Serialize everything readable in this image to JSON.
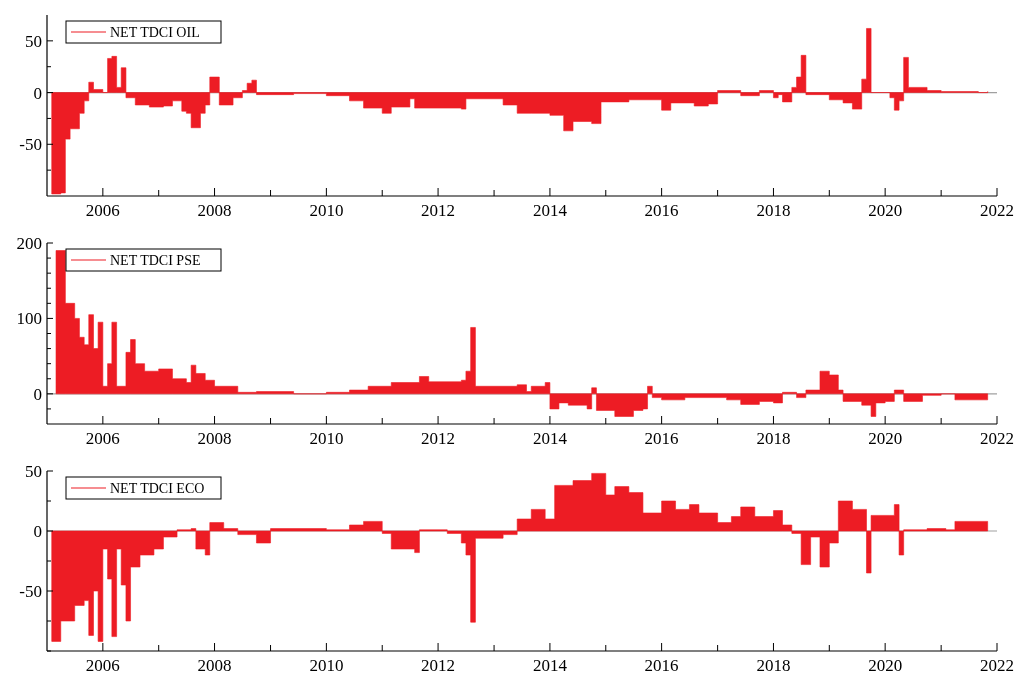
{
  "chart_data": [
    {
      "type": "area",
      "legend": "top left",
      "xlim": [
        "2005",
        "2022"
      ],
      "ylim": [
        -100,
        75
      ],
      "xticks": [
        "2006",
        {
          "value": "2007",
          "label": null
        },
        "2008",
        {
          "value": "2009",
          "label": null
        },
        "2010",
        {
          "value": "2011",
          "label": null
        },
        "2012",
        {
          "value": "2013",
          "label": null
        },
        "2014",
        {
          "value": "2015",
          "label": null
        },
        "2016",
        {
          "value": "2017",
          "label": null
        },
        "2018",
        {
          "value": "2019",
          "label": null
        },
        "2020",
        {
          "value": "2021",
          "label": null
        },
        "2022"
      ],
      "yticks": [
        {
          "value": -75,
          "label": null
        },
        -50,
        {
          "value": -25,
          "label": null
        },
        0,
        {
          "value": 25,
          "label": null
        },
        50
      ],
      "ref_lines": [
        {
          "axis": "y",
          "value": 0,
          "color": "#a0a0a0"
        }
      ],
      "x": [
        "2005-02",
        "2005-04",
        "2005-05",
        "2005-06",
        "2005-08",
        "2005-09",
        "2005-10",
        "2005-11",
        "2006-01",
        "2006-02",
        "2006-03",
        "2006-04",
        "2006-05",
        "2006-06",
        "2006-08",
        "2006-11",
        "2007-02",
        "2007-04",
        "2007-06",
        "2007-07",
        "2007-08",
        "2007-10",
        "2007-11",
        "2007-12",
        "2008-02",
        "2008-05",
        "2008-07",
        "2008-08",
        "2008-09",
        "2008-10",
        "2009-06",
        "2010-01",
        "2010-06",
        "2010-09",
        "2011-01",
        "2011-03",
        "2011-07",
        "2011-08",
        "2012-06",
        "2012-07",
        "2013-03",
        "2013-06",
        "2013-09",
        "2014-01",
        "2014-04",
        "2014-06",
        "2014-10",
        "2014-12",
        "2015-06",
        "2016-01",
        "2016-03",
        "2016-08",
        "2016-11",
        "2017-01",
        "2017-06",
        "2017-10",
        "2018-01",
        "2018-02",
        "2018-03",
        "2018-05",
        "2018-06",
        "2018-07",
        "2018-08",
        "2019-01",
        "2019-04",
        "2019-06",
        "2019-08",
        "2019-09",
        "2019-10",
        "2020-02",
        "2020-03",
        "2020-04",
        "2020-05",
        "2020-06",
        "2020-10",
        "2021-01",
        "2021-09",
        "2021-11"
      ],
      "series": [
        {
          "name": "NET TDCI OIL",
          "color": "#ed1c24",
          "values": [
            -98,
            -97,
            -45,
            -35,
            -20,
            -8,
            10,
            3,
            0,
            33,
            35,
            5,
            24,
            -5,
            -12,
            -14,
            -13,
            -8,
            -18,
            -20,
            -34,
            -20,
            -12,
            15,
            -12,
            -5,
            2,
            9,
            12,
            -2,
            -1,
            -3,
            -8,
            -15,
            -20,
            -14,
            -6,
            -15,
            -16,
            -6,
            -12,
            -20,
            -20,
            -22,
            -37,
            -28,
            -30,
            -9,
            -7,
            -17,
            -10,
            -13,
            -11,
            2,
            -3,
            2,
            -5,
            -2,
            -9,
            5,
            15,
            36,
            -2,
            -7,
            -10,
            -16,
            13,
            62,
            0,
            -5,
            -17,
            -8,
            34,
            5,
            2,
            1,
            0,
            1
          ]
        }
      ]
    },
    {
      "type": "area",
      "legend": "top left",
      "xlim": [
        "2005",
        "2022"
      ],
      "ylim": [
        -40,
        200
      ],
      "xticks": [
        "2006",
        {
          "value": "2007",
          "label": null
        },
        "2008",
        {
          "value": "2009",
          "label": null
        },
        "2010",
        {
          "value": "2011",
          "label": null
        },
        "2012",
        {
          "value": "2013",
          "label": null
        },
        "2014",
        {
          "value": "2015",
          "label": null
        },
        "2016",
        {
          "value": "2017",
          "label": null
        },
        "2018",
        {
          "value": "2019",
          "label": null
        },
        "2020",
        {
          "value": "2021",
          "label": null
        },
        "2022"
      ],
      "yticks": [
        {
          "value": -20,
          "label": null
        },
        0,
        {
          "value": 20,
          "label": null
        },
        {
          "value": 40,
          "label": null
        },
        {
          "value": 60,
          "label": null
        },
        {
          "value": 80,
          "label": null
        },
        100,
        {
          "value": 120,
          "label": null
        },
        {
          "value": 140,
          "label": null
        },
        {
          "value": 160,
          "label": null
        },
        {
          "value": 180,
          "label": null
        },
        200
      ],
      "ref_lines": [
        {
          "axis": "y",
          "value": 0,
          "color": "#a0a0a0"
        }
      ],
      "x": [
        "2005-03",
        "2005-05",
        "2005-07",
        "2005-08",
        "2005-09",
        "2005-10",
        "2005-11",
        "2005-12",
        "2006-01",
        "2006-02",
        "2006-03",
        "2006-04",
        "2006-06",
        "2006-07",
        "2006-08",
        "2006-10",
        "2007-01",
        "2007-04",
        "2007-07",
        "2007-08",
        "2007-09",
        "2007-11",
        "2008-01",
        "2008-06",
        "2008-10",
        "2009-06",
        "2010-01",
        "2010-06",
        "2010-10",
        "2011-03",
        "2011-09",
        "2011-11",
        "2012-06",
        "2012-07",
        "2012-08",
        "2012-09",
        "2013-06",
        "2013-08",
        "2013-09",
        "2013-12",
        "2014-01",
        "2014-03",
        "2014-05",
        "2014-09",
        "2014-10",
        "2014-11",
        "2015-03",
        "2015-07",
        "2015-09",
        "2015-10",
        "2015-11",
        "2016-01",
        "2016-06",
        "2016-09",
        "2017-03",
        "2017-06",
        "2017-10",
        "2018-01",
        "2018-03",
        "2018-06",
        "2018-08",
        "2018-11",
        "2019-01",
        "2019-03",
        "2019-04",
        "2019-08",
        "2019-10",
        "2019-11",
        "2020-01",
        "2020-03",
        "2020-05",
        "2020-09",
        "2021-01",
        "2021-04",
        "2021-11"
      ],
      "series": [
        {
          "name": "NET TDCI PSE",
          "color": "#ed1c24",
          "values": [
            190,
            120,
            100,
            75,
            65,
            105,
            60,
            95,
            10,
            40,
            95,
            10,
            55,
            72,
            40,
            30,
            33,
            20,
            15,
            38,
            27,
            18,
            10,
            2,
            3,
            0,
            2,
            5,
            10,
            15,
            23,
            16,
            18,
            30,
            88,
            10,
            12,
            3,
            10,
            15,
            -20,
            -12,
            -15,
            -20,
            8,
            -22,
            -30,
            -22,
            -20,
            10,
            -5,
            -8,
            -5,
            -5,
            -8,
            -14,
            -10,
            -12,
            2,
            -5,
            5,
            30,
            25,
            5,
            -10,
            -15,
            -30,
            -12,
            -10,
            5,
            -10,
            -2,
            0,
            -8,
            -8
          ]
        }
      ]
    },
    {
      "type": "area",
      "legend": "top left",
      "xlim": [
        "2005",
        "2022"
      ],
      "ylim": [
        -100,
        50
      ],
      "xticks": [
        "2006",
        {
          "value": "2007",
          "label": null
        },
        "2008",
        {
          "value": "2009",
          "label": null
        },
        "2010",
        {
          "value": "2011",
          "label": null
        },
        "2012",
        {
          "value": "2013",
          "label": null
        },
        "2014",
        {
          "value": "2015",
          "label": null
        },
        "2016",
        {
          "value": "2017",
          "label": null
        },
        "2018",
        {
          "value": "2019",
          "label": null
        },
        "2020",
        {
          "value": "2021",
          "label": null
        },
        "2022"
      ],
      "yticks": [
        {
          "value": -100,
          "label": null
        },
        {
          "value": -75,
          "label": null
        },
        -50,
        {
          "value": -25,
          "label": null
        },
        0,
        {
          "value": 25,
          "label": null
        },
        50
      ],
      "ref_lines": [
        {
          "axis": "y",
          "value": 0,
          "color": "#a0a0a0"
        }
      ],
      "x": [
        "2005-02",
        "2005-04",
        "2005-07",
        "2005-09",
        "2005-10",
        "2005-11",
        "2005-12",
        "2006-01",
        "2006-02",
        "2006-03",
        "2006-04",
        "2006-05",
        "2006-06",
        "2006-07",
        "2006-09",
        "2006-12",
        "2007-02",
        "2007-05",
        "2007-08",
        "2007-09",
        "2007-11",
        "2007-12",
        "2008-03",
        "2008-06",
        "2008-10",
        "2009-01",
        "2010-01",
        "2010-06",
        "2010-09",
        "2011-01",
        "2011-03",
        "2011-08",
        "2011-09",
        "2012-03",
        "2012-06",
        "2012-07",
        "2012-08",
        "2012-09",
        "2013-03",
        "2013-06",
        "2013-09",
        "2013-12",
        "2014-02",
        "2014-06",
        "2014-10",
        "2015-01",
        "2015-03",
        "2015-06",
        "2015-09",
        "2016-01",
        "2016-04",
        "2016-07",
        "2016-09",
        "2017-01",
        "2017-04",
        "2017-06",
        "2017-09",
        "2018-01",
        "2018-03",
        "2018-05",
        "2018-07",
        "2018-09",
        "2018-11",
        "2019-01",
        "2019-03",
        "2019-06",
        "2019-09",
        "2019-10",
        "2020-02",
        "2020-03",
        "2020-04",
        "2020-05",
        "2020-10",
        "2021-02",
        "2021-04",
        "2021-11"
      ],
      "series": [
        {
          "name": "NET TDCI ECO",
          "color": "#ed1c24",
          "values": [
            -92,
            -75,
            -62,
            -58,
            -87,
            -50,
            -92,
            -15,
            -40,
            -88,
            -15,
            -45,
            -75,
            -30,
            -20,
            -15,
            -5,
            1,
            2,
            -15,
            -20,
            7,
            2,
            -3,
            -10,
            2,
            1,
            5,
            8,
            -2,
            -15,
            -18,
            1,
            -2,
            -10,
            -20,
            -76,
            -6,
            -3,
            10,
            18,
            10,
            38,
            42,
            48,
            30,
            37,
            32,
            15,
            25,
            18,
            22,
            15,
            7,
            12,
            20,
            12,
            17,
            5,
            -2,
            -28,
            -5,
            -30,
            -10,
            25,
            18,
            -35,
            13,
            13,
            22,
            -20,
            1,
            2,
            1,
            8,
            8
          ]
        }
      ]
    }
  ]
}
